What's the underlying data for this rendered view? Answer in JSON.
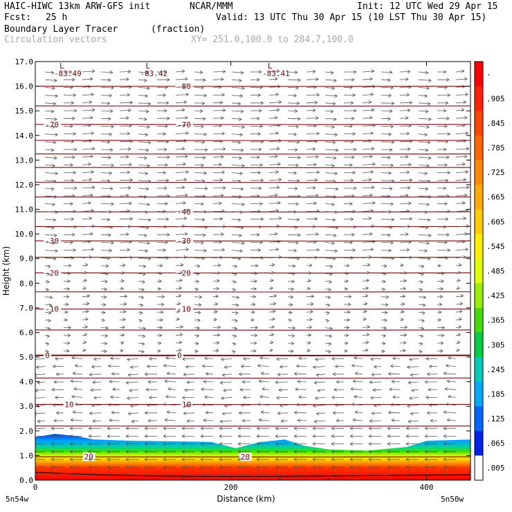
{
  "header": {
    "model": "HAIC-HIWC 13km ARW-GFS init",
    "org": "NCAR/MMM",
    "init": "Init: 12 UTC Wed 29 Apr 15",
    "fcst_label": "Fcst:",
    "fcst_value": "25 h",
    "valid": "Valid: 13 UTC Thu 30 Apr 15 (10 LST Thu 30 Apr 15)",
    "field1": "Boundary Layer Tracer",
    "field1_units": "(fraction)",
    "field2": "Circulation vectors",
    "xy_range": "XY= 251.0,100.0 to 284.7,100.0"
  },
  "colors": {
    "contour": "#7a0000",
    "vector": "#555555"
  },
  "chart_data": {
    "type": "heatmap",
    "xlabel": "Distance (km)",
    "ylabel": "Height (km)",
    "xlim": [
      0,
      445
    ],
    "ylim": [
      0.0,
      17.0
    ],
    "x_ticks": [
      0,
      200,
      400
    ],
    "y_ticks": [
      "0.0",
      "1.0",
      "2.0",
      "3.0",
      "4.0",
      "5.0",
      "6.0",
      "7.0",
      "8.0",
      "9.0",
      "10.0",
      "11.0",
      "12.0",
      "13.0",
      "14.0",
      "15.0",
      "16.0",
      "17.0"
    ],
    "x_endpoint_labels": [
      "5n54w",
      "5n50w"
    ],
    "colorbar": {
      "labels": [
        "-",
        ".905",
        ".845",
        ".785",
        ".725",
        ".665",
        ".605",
        ".545",
        ".485",
        ".425",
        ".365",
        ".305",
        ".245",
        ".185",
        ".125",
        ".065",
        ".005"
      ],
      "colors": [
        "#ff0000",
        "#ff2200",
        "#ff4400",
        "#ff6600",
        "#ff8800",
        "#ffaa00",
        "#ffcc00",
        "#ffee00",
        "#ddff00",
        "#99ee00",
        "#44dd00",
        "#00cc44",
        "#00ccbb",
        "#00aaff",
        "#0066ff",
        "#0022ee",
        "#ffffff"
      ]
    },
    "temperature_contours": [
      {
        "value": "-80",
        "y": 16.0,
        "labels_at": [
          145
        ]
      },
      {
        "value": "-70",
        "y": 14.45,
        "labels_at": [
          10,
          145
        ]
      },
      {
        "value": "-40",
        "y": 10.9,
        "labels_at": [
          145
        ]
      },
      {
        "value": "-30",
        "y": 9.72,
        "labels_at": [
          10,
          145
        ]
      },
      {
        "value": "-20",
        "y": 8.42,
        "labels_at": [
          10,
          145
        ]
      },
      {
        "value": "-10",
        "y": 6.95,
        "labels_at": [
          10,
          145
        ]
      },
      {
        "value": "0",
        "y": 5.07,
        "labels_at": [
          10,
          145
        ]
      },
      {
        "value": "10",
        "y": 3.08,
        "labels_at": [
          30,
          150
        ]
      },
      {
        "value": "20",
        "y": 0.95,
        "labels_at": [
          50,
          210
        ]
      }
    ],
    "unlabeled_contour_heights": [
      15.2,
      13.8,
      13.25,
      12.7,
      12.1,
      11.5,
      10.3,
      9.05,
      7.65,
      6.1,
      4.15,
      2.2
    ],
    "lows": [
      {
        "label": "L",
        "value": "-83.49",
        "x": 12
      },
      {
        "label": "L",
        "value": "-83.42",
        "x": 100
      },
      {
        "label": "L",
        "value": "-83.41",
        "x": 225
      }
    ],
    "tracer_top_km": [
      {
        "x": 0,
        "y": 1.75
      },
      {
        "x": 20,
        "y": 1.88
      },
      {
        "x": 40,
        "y": 1.8
      },
      {
        "x": 60,
        "y": 1.65
      },
      {
        "x": 100,
        "y": 1.6
      },
      {
        "x": 140,
        "y": 1.58
      },
      {
        "x": 180,
        "y": 1.55
      },
      {
        "x": 205,
        "y": 1.3
      },
      {
        "x": 230,
        "y": 1.55
      },
      {
        "x": 255,
        "y": 1.65
      },
      {
        "x": 275,
        "y": 1.4
      },
      {
        "x": 300,
        "y": 1.25
      },
      {
        "x": 340,
        "y": 1.2
      },
      {
        "x": 380,
        "y": 1.35
      },
      {
        "x": 400,
        "y": 1.6
      },
      {
        "x": 445,
        "y": 1.65
      }
    ]
  }
}
